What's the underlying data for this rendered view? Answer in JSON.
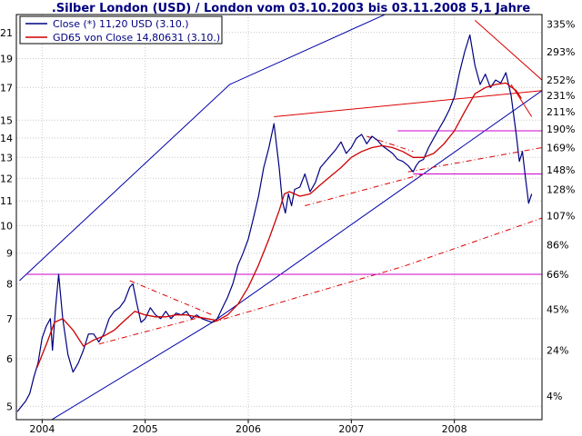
{
  "chart_data": {
    "type": "line",
    "title": ".Silber London (USD) / London vom 03.10.2003 bis 03.11.2008 5,1 Jahre",
    "y_scale": "log",
    "ylim": [
      4.75,
      22.5
    ],
    "xlim": [
      2003.75,
      2008.85
    ],
    "left_ticks": [
      5,
      6,
      7,
      8,
      9,
      10,
      11,
      12,
      13,
      14,
      15,
      17,
      19,
      21
    ],
    "right_ticks": [
      {
        "value": 5.2,
        "label": "4%"
      },
      {
        "value": 6.2,
        "label": "24%"
      },
      {
        "value": 7.25,
        "label": "45%"
      },
      {
        "value": 8.3,
        "label": "66%"
      },
      {
        "value": 9.3,
        "label": "86%"
      },
      {
        "value": 10.4,
        "label": "107%"
      },
      {
        "value": 11.5,
        "label": "128%"
      },
      {
        "value": 12.4,
        "label": "148%"
      },
      {
        "value": 13.5,
        "label": "169%"
      },
      {
        "value": 14.5,
        "label": "190%"
      },
      {
        "value": 15.5,
        "label": "211%"
      },
      {
        "value": 16.5,
        "label": "231%"
      },
      {
        "value": 17.5,
        "label": "252%"
      },
      {
        "value": 19.5,
        "label": "293%"
      },
      {
        "value": 21.7,
        "label": "335%"
      }
    ],
    "x_ticks": [
      {
        "value": 2004.0,
        "label": "2004"
      },
      {
        "value": 2005.0,
        "label": "2005"
      },
      {
        "value": 2006.0,
        "label": "2006"
      },
      {
        "value": 2007.0,
        "label": "2007"
      },
      {
        "value": 2008.0,
        "label": "2008"
      }
    ],
    "grid": true,
    "legend": {
      "position": "top-left",
      "entries": [
        {
          "label": "Close (*) 11,20 USD (3.10.)",
          "color": "#000080"
        },
        {
          "label": "GD65 von Close 14,80631 (3.10.)",
          "color": "#cc0000"
        }
      ]
    },
    "series": [
      {
        "name": "Close (*) 11,20 USD (3.10.)",
        "color": "#000080",
        "x": [
          2003.76,
          2003.8,
          2003.84,
          2003.88,
          2003.92,
          2003.96,
          2004.0,
          2004.04,
          2004.08,
          2004.1,
          2004.13,
          2004.16,
          2004.2,
          2004.25,
          2004.3,
          2004.35,
          2004.4,
          2004.45,
          2004.5,
          2004.55,
          2004.6,
          2004.65,
          2004.7,
          2004.75,
          2004.8,
          2004.85,
          2004.88,
          2004.92,
          2004.96,
          2005.0,
          2005.05,
          2005.1,
          2005.15,
          2005.2,
          2005.25,
          2005.3,
          2005.35,
          2005.4,
          2005.45,
          2005.5,
          2005.55,
          2005.6,
          2005.65,
          2005.7,
          2005.75,
          2005.8,
          2005.85,
          2005.9,
          2005.95,
          2006.0,
          2006.05,
          2006.1,
          2006.15,
          2006.2,
          2006.25,
          2006.3,
          2006.33,
          2006.36,
          2006.39,
          2006.42,
          2006.45,
          2006.5,
          2006.55,
          2006.6,
          2006.65,
          2006.7,
          2006.75,
          2006.8,
          2006.85,
          2006.9,
          2006.95,
          2007.0,
          2007.05,
          2007.1,
          2007.15,
          2007.2,
          2007.25,
          2007.3,
          2007.35,
          2007.4,
          2007.45,
          2007.5,
          2007.55,
          2007.6,
          2007.63,
          2007.66,
          2007.7,
          2007.75,
          2007.8,
          2007.85,
          2007.9,
          2007.95,
          2008.0,
          2008.05,
          2008.1,
          2008.15,
          2008.2,
          2008.25,
          2008.3,
          2008.35,
          2008.4,
          2008.45,
          2008.5,
          2008.55,
          2008.6,
          2008.63,
          2008.66,
          2008.69,
          2008.72,
          2008.75
        ],
        "values": [
          4.9,
          5.0,
          5.1,
          5.25,
          5.6,
          5.9,
          6.5,
          6.8,
          7.0,
          6.2,
          7.3,
          8.3,
          7.0,
          6.1,
          5.7,
          5.9,
          6.2,
          6.6,
          6.6,
          6.4,
          6.6,
          7.0,
          7.2,
          7.3,
          7.5,
          7.9,
          8.0,
          7.4,
          6.9,
          7.0,
          7.3,
          7.1,
          7.0,
          7.2,
          7.0,
          7.15,
          7.1,
          7.2,
          7.0,
          7.1,
          7.0,
          6.95,
          6.9,
          7.0,
          7.3,
          7.6,
          8.0,
          8.6,
          9.0,
          9.5,
          10.3,
          11.2,
          12.5,
          13.5,
          14.8,
          12.5,
          11.0,
          10.5,
          11.3,
          10.8,
          11.5,
          11.6,
          12.2,
          11.4,
          11.8,
          12.5,
          12.8,
          13.1,
          13.4,
          13.8,
          13.2,
          13.5,
          14.0,
          14.2,
          13.7,
          14.1,
          13.9,
          13.6,
          13.4,
          13.2,
          12.9,
          12.8,
          12.6,
          12.3,
          12.6,
          12.8,
          12.9,
          13.5,
          14.0,
          14.5,
          15.0,
          15.6,
          16.4,
          18.0,
          19.5,
          20.8,
          18.5,
          17.2,
          17.9,
          17.0,
          17.5,
          17.3,
          18.0,
          16.5,
          14.2,
          12.8,
          13.3,
          12.0,
          10.9,
          11.3
        ]
      },
      {
        "name": "GD65 von Close 14,80631 (3.10.)",
        "color": "#cc0000",
        "x": [
          2003.95,
          2004.05,
          2004.12,
          2004.2,
          2004.3,
          2004.4,
          2004.5,
          2004.6,
          2004.7,
          2004.8,
          2004.9,
          2005.0,
          2005.1,
          2005.2,
          2005.3,
          2005.4,
          2005.5,
          2005.6,
          2005.7,
          2005.8,
          2005.9,
          2006.0,
          2006.1,
          2006.2,
          2006.3,
          2006.35,
          2006.4,
          2006.5,
          2006.6,
          2006.7,
          2006.8,
          2006.9,
          2007.0,
          2007.1,
          2007.2,
          2007.3,
          2007.4,
          2007.5,
          2007.6,
          2007.7,
          2007.8,
          2007.9,
          2008.0,
          2008.1,
          2008.2,
          2008.3,
          2008.4,
          2008.5,
          2008.6,
          2008.65
        ],
        "values": [
          5.8,
          6.4,
          6.9,
          7.0,
          6.7,
          6.3,
          6.45,
          6.55,
          6.7,
          6.95,
          7.2,
          7.1,
          7.05,
          7.05,
          7.1,
          7.1,
          7.05,
          7.0,
          6.95,
          7.1,
          7.4,
          7.9,
          8.6,
          9.5,
          10.6,
          11.3,
          11.4,
          11.2,
          11.3,
          11.7,
          12.1,
          12.5,
          13.0,
          13.3,
          13.5,
          13.6,
          13.5,
          13.3,
          13.0,
          13.0,
          13.2,
          13.7,
          14.4,
          15.5,
          16.6,
          17.0,
          17.2,
          17.3,
          16.8,
          16.3
        ]
      }
    ],
    "lines": [
      {
        "color": "#0000aa",
        "dash": false,
        "points": [
          [
            2003.78,
            8.1
          ],
          [
            2005.82,
            17.2
          ],
          [
            2007.45,
            23.0
          ]
        ]
      },
      {
        "color": "#0000aa",
        "dash": false,
        "points": [
          [
            2004.05,
            4.7
          ],
          [
            2005.65,
            6.9
          ],
          [
            2008.85,
            16.8
          ]
        ]
      },
      {
        "color": "#dd0000",
        "dash": false,
        "points": [
          [
            2006.25,
            15.2
          ],
          [
            2008.85,
            16.8
          ]
        ]
      },
      {
        "color": "#dd0000",
        "dash": false,
        "points": [
          [
            2008.2,
            22.0
          ],
          [
            2008.85,
            17.5
          ]
        ]
      },
      {
        "color": "#dd0000",
        "dash": false,
        "points": [
          [
            2008.55,
            17.2
          ],
          [
            2008.75,
            15.2
          ]
        ]
      },
      {
        "color": "#dd0000",
        "dash": true,
        "points": [
          [
            2004.85,
            8.1
          ],
          [
            2005.65,
            7.1
          ]
        ]
      },
      {
        "color": "#dd0000",
        "dash": true,
        "points": [
          [
            2004.55,
            6.35
          ],
          [
            2005.55,
            7.05
          ]
        ]
      },
      {
        "color": "#dd0000",
        "dash": true,
        "points": [
          [
            2006.55,
            10.8
          ],
          [
            2007.7,
            12.2
          ]
        ]
      },
      {
        "color": "#dd0000",
        "dash": true,
        "points": [
          [
            2007.15,
            14.1
          ],
          [
            2007.6,
            13.3
          ]
        ]
      },
      {
        "color": "#dd0000",
        "dash": true,
        "points": [
          [
            2005.65,
            6.9
          ],
          [
            2007.5,
            8.55
          ],
          [
            2008.85,
            10.3
          ]
        ]
      },
      {
        "color": "#dd0000",
        "dash": true,
        "points": [
          [
            2007.55,
            12.3
          ],
          [
            2008.85,
            13.5
          ]
        ]
      },
      {
        "color": "#cc00cc",
        "dash": false,
        "points": [
          [
            2003.85,
            8.3
          ],
          [
            2008.85,
            8.3
          ]
        ]
      },
      {
        "color": "#cc00cc",
        "dash": false,
        "points": [
          [
            2007.6,
            12.2
          ],
          [
            2008.85,
            12.2
          ]
        ]
      },
      {
        "color": "#cc00cc",
        "dash": false,
        "points": [
          [
            2007.45,
            14.4
          ],
          [
            2008.85,
            14.4
          ]
        ]
      }
    ]
  }
}
